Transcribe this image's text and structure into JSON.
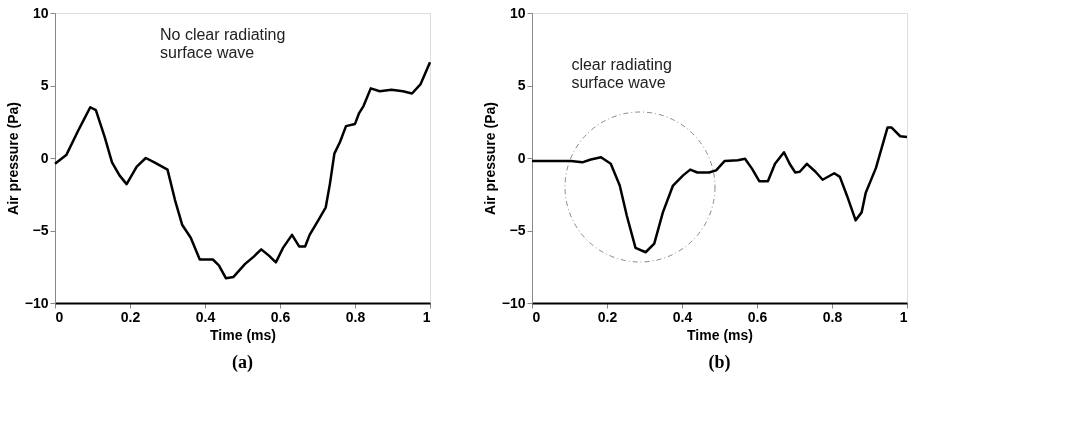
{
  "chart_data": [
    {
      "type": "line",
      "title": "(a)",
      "xlabel": "Time (ms)",
      "ylabel": "Air pressure (Pa)",
      "xlim": [
        0,
        1
      ],
      "ylim": [
        -10,
        10
      ],
      "xticks": [
        0,
        0.2,
        0.4,
        0.6,
        0.8,
        1
      ],
      "yticks": [
        -10,
        -5,
        0,
        5,
        10
      ],
      "grid": false,
      "marker": "none",
      "line_style": "solid",
      "annotations": [
        "No clear radiating\nsurface wave"
      ],
      "x": [
        0,
        0.03,
        0.062,
        0.078,
        0.094,
        0.109,
        0.133,
        0.152,
        0.172,
        0.191,
        0.218,
        0.242,
        0.265,
        0.3,
        0.32,
        0.339,
        0.362,
        0.386,
        0.421,
        0.437,
        0.456,
        0.476,
        0.507,
        0.53,
        0.55,
        0.569,
        0.589,
        0.608,
        0.632,
        0.651,
        0.667,
        0.679,
        0.702,
        0.722,
        0.733,
        0.745,
        0.76,
        0.776,
        0.8,
        0.811,
        0.823,
        0.842,
        0.866,
        0.897,
        0.928,
        0.952,
        0.975,
        1.0
      ],
      "series": [
        {
          "color": "#000000",
          "values": [
            -0.4,
            0.2,
            1.9,
            2.7,
            3.5,
            3.3,
            1.4,
            -0.3,
            -1.2,
            -1.8,
            -0.6,
            0,
            -0.3,
            -0.8,
            -2.9,
            -4.6,
            -5.5,
            -7.0,
            -7.0,
            -7.4,
            -8.3,
            -8.2,
            -7.3,
            -6.8,
            -6.3,
            -6.7,
            -7.2,
            -6.2,
            -5.3,
            -6.1,
            -6.1,
            -5.3,
            -4.3,
            -3.4,
            -1.8,
            0.3,
            1.1,
            2.2,
            2.35,
            3.1,
            3.6,
            4.8,
            4.6,
            4.7,
            4.6,
            4.45,
            5.1,
            6.6
          ]
        }
      ]
    },
    {
      "type": "line",
      "title": "(b)",
      "xlabel": "Time (ms)",
      "ylabel": "Air pressure (Pa)",
      "xlim": [
        0,
        1
      ],
      "ylim": [
        -10,
        10
      ],
      "xticks": [
        0,
        0.2,
        0.4,
        0.6,
        0.8,
        1
      ],
      "yticks": [
        -10,
        -5,
        0,
        5,
        10
      ],
      "grid": false,
      "marker": "none",
      "line_style": "solid",
      "annotations": [
        "clear radiating\nsurface wave"
      ],
      "x": [
        0,
        0.104,
        0.134,
        0.157,
        0.184,
        0.21,
        0.234,
        0.253,
        0.276,
        0.303,
        0.326,
        0.349,
        0.376,
        0.403,
        0.422,
        0.441,
        0.472,
        0.491,
        0.514,
        0.549,
        0.568,
        0.587,
        0.606,
        0.629,
        0.648,
        0.672,
        0.687,
        0.702,
        0.714,
        0.733,
        0.756,
        0.775,
        0.806,
        0.821,
        0.84,
        0.863,
        0.879,
        0.89,
        0.917,
        0.948,
        0.959,
        0.982,
        1.0
      ],
      "series": [
        {
          "color": "#000000",
          "values": [
            -0.2,
            -0.2,
            -0.3,
            -0.1,
            0.05,
            -0.4,
            -1.9,
            -4.0,
            -6.2,
            -6.5,
            -5.9,
            -3.75,
            -1.9,
            -1.2,
            -0.8,
            -1.0,
            -1.0,
            -0.85,
            -0.2,
            -0.15,
            -0.05,
            -0.75,
            -1.6,
            -1.6,
            -0.4,
            0.4,
            -0.4,
            -1.0,
            -0.95,
            -0.4,
            -0.95,
            -1.5,
            -1.05,
            -1.3,
            -2.6,
            -4.3,
            -3.75,
            -2.4,
            -0.7,
            2.1,
            2.1,
            1.5,
            1.45
          ]
        }
      ]
    }
  ]
}
